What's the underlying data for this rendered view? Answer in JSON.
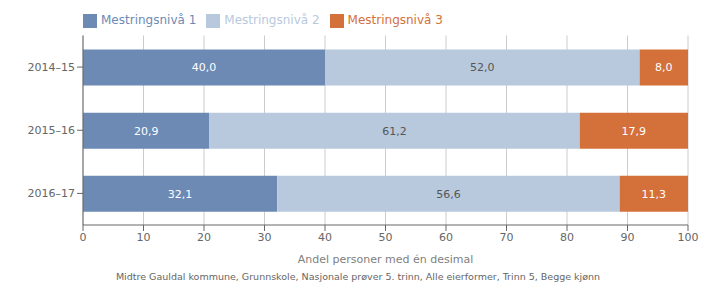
{
  "chart_data": {
    "type": "bar",
    "orientation": "horizontal",
    "stacked": true,
    "data_labels": true,
    "categories": [
      "2014–15",
      "2015–16",
      "2016–17"
    ],
    "series": [
      {
        "name": "Mestringsnivå 1",
        "color": "#6d8ab5",
        "values": [
          40.0,
          20.9,
          32.1
        ],
        "value_labels": [
          "40,0",
          "20,9",
          "32,1"
        ]
      },
      {
        "name": "Mestringsnivå 2",
        "color": "#b8c9de",
        "values": [
          52.0,
          61.2,
          56.6
        ],
        "value_labels": [
          "52,0",
          "61,2",
          "56,6"
        ]
      },
      {
        "name": "Mestringsnivå 3",
        "color": "#d4703a",
        "values": [
          8.0,
          17.9,
          11.3
        ],
        "value_labels": [
          "8,0",
          "17,9",
          "11,3"
        ]
      }
    ],
    "xlabel": "Andel personer med én desimal",
    "annotations": [
      "Midtre Gauldal kommune, Grunnskole, Nasjonale prøver 5. trinn, Alle eierformer, Trinn 5, Begge kjønn"
    ],
    "xlim": [
      0,
      100
    ],
    "xticks": [
      0,
      10,
      20,
      30,
      40,
      50,
      60,
      70,
      80,
      90,
      100
    ],
    "grid": true,
    "legend": "upper left"
  }
}
